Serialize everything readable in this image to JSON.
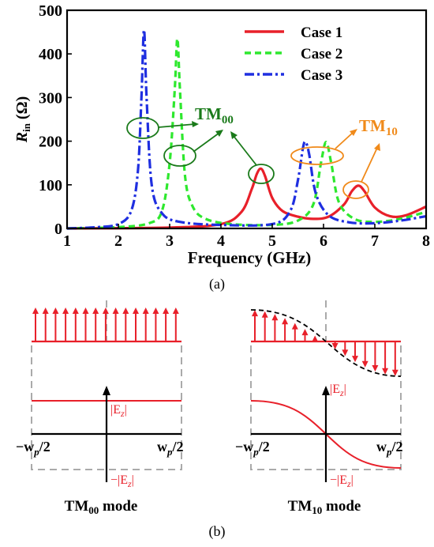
{
  "panel_a": {
    "label": "(a)",
    "y_axis_label": {
      "main": "R",
      "sub": "in",
      "unit": " (Ω)"
    },
    "annotations": {
      "tm00": {
        "main": "TM",
        "sub": "00"
      },
      "tm10": {
        "main": "TM",
        "sub": "10"
      }
    }
  },
  "chart_data": {
    "type": "line",
    "xlabel": "Frequency (GHz)",
    "ylabel": "Rin (Ω)",
    "xlim": [
      1,
      8
    ],
    "ylim": [
      0,
      500
    ],
    "xticks": [
      1,
      2,
      3,
      4,
      5,
      6,
      7,
      8
    ],
    "yticks": [
      0,
      100,
      200,
      300,
      400,
      500
    ],
    "grid": false,
    "legend_position": "top-right",
    "series": [
      {
        "name": "Case 1",
        "color": "#e8202a",
        "style": "solid",
        "x": [
          1.0,
          3.0,
          4.0,
          4.4,
          4.6,
          4.7,
          4.78,
          4.86,
          5.0,
          5.2,
          5.5,
          5.8,
          6.1,
          6.4,
          6.55,
          6.68,
          6.8,
          7.0,
          7.3,
          7.6,
          8.0
        ],
        "y": [
          0,
          2,
          10,
          38,
          90,
          125,
          137,
          120,
          70,
          40,
          27,
          22,
          27,
          55,
          85,
          98,
          85,
          48,
          28,
          30,
          50
        ]
      },
      {
        "name": "Case 2",
        "color": "#2ee82e",
        "style": "dashed",
        "x": [
          1.0,
          2.0,
          2.6,
          2.85,
          3.0,
          3.1,
          3.15,
          3.2,
          3.3,
          3.45,
          3.7,
          4.2,
          5.0,
          5.5,
          5.8,
          5.95,
          6.05,
          6.15,
          6.3,
          6.6,
          7.0,
          7.5,
          8.0
        ],
        "y": [
          0,
          3,
          12,
          40,
          150,
          320,
          435,
          320,
          120,
          50,
          22,
          10,
          8,
          18,
          55,
          150,
          198,
          150,
          60,
          22,
          15,
          22,
          38
        ]
      },
      {
        "name": "Case 3",
        "color": "#1f2fe0",
        "style": "dashdot",
        "x": [
          1.0,
          1.6,
          2.0,
          2.25,
          2.38,
          2.45,
          2.5,
          2.55,
          2.65,
          2.85,
          3.2,
          4.0,
          5.0,
          5.35,
          5.5,
          5.6,
          5.65,
          5.72,
          5.85,
          6.1,
          6.5,
          7.0,
          7.5,
          8.0
        ],
        "y": [
          0,
          3,
          10,
          40,
          130,
          300,
          455,
          300,
          100,
          35,
          15,
          8,
          10,
          40,
          110,
          185,
          198,
          170,
          80,
          30,
          14,
          12,
          18,
          28
        ]
      }
    ]
  },
  "panel_b": {
    "label": "(b)",
    "left": {
      "ez_top": "|E",
      "ez_top_sub": "z",
      "ez_bottom": "−|E",
      "ez_bottom_sub": "z",
      "x_left": "−w",
      "x_left_sub": "p",
      "x_left_tail": "/2",
      "x_right": "w",
      "x_right_sub": "p",
      "x_right_tail": "/2",
      "mode_main": "TM",
      "mode_sub": "00",
      "mode_tail": " mode"
    },
    "right": {
      "ez_top": "|E",
      "ez_top_sub": "z",
      "ez_bottom": "−|E",
      "ez_bottom_sub": "z",
      "x_left": "−w",
      "x_left_sub": "p",
      "x_left_tail": "/2",
      "x_right": "w",
      "x_right_sub": "p",
      "x_right_tail": "/2",
      "mode_main": "TM",
      "mode_sub": "10",
      "mode_tail": " mode"
    }
  }
}
